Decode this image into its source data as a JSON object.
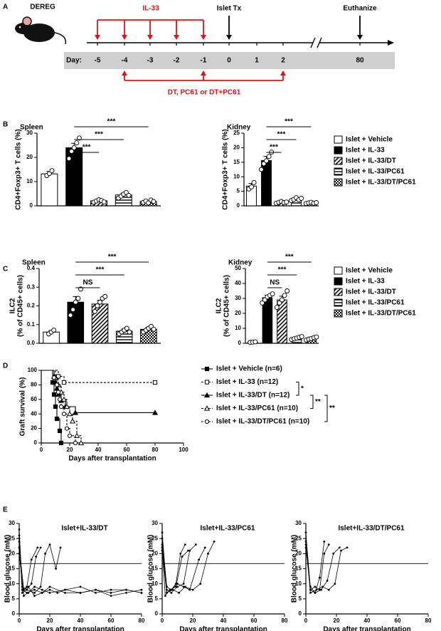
{
  "panels": [
    "A",
    "B",
    "C",
    "D",
    "E"
  ],
  "timeline": {
    "mouse_label": "DEREG",
    "top_treatment": "IL-33",
    "transplant": "Islet Tx",
    "endpoint": "Euthanize",
    "day_prefix": "Day:",
    "days": [
      "-5",
      "-4",
      "-3",
      "-2",
      "-1",
      "0",
      "1",
      "2",
      "80"
    ],
    "bottom_treatment": "DT, PC61 or DT+PC61"
  },
  "chart_data": [
    {
      "type": "bar",
      "title": "Spleen",
      "ylabel": [
        "CD4+Foxp3+ T cells (%)"
      ],
      "categories": [
        null,
        null,
        null,
        null,
        null
      ],
      "patterns": [
        "open",
        "solid",
        "diagonal",
        "horizontal",
        "checker"
      ],
      "values": [
        13.2,
        24,
        2.1,
        4.5,
        1.8
      ],
      "errors": [
        1,
        1.8,
        0.4,
        0.8,
        0.3
      ],
      "points": [
        [
          12.5,
          13.3,
          14.5
        ],
        [
          19.5,
          22.5,
          24,
          26,
          28
        ],
        [
          1.5,
          2,
          2.5,
          2.2,
          1.6
        ],
        [
          3.2,
          4,
          4.8,
          5.5,
          4.3
        ],
        [
          1.4,
          2,
          1.2,
          2.4,
          1.8
        ]
      ],
      "ylim": [
        0,
        30
      ],
      "yticks": [
        0,
        10,
        20,
        30
      ],
      "brackets": [
        {
          "text": "***",
          "from": 1,
          "to": 2
        },
        {
          "text": "***",
          "from": 1,
          "to": 3
        },
        {
          "text": "***",
          "from": 1,
          "to": 4
        }
      ]
    },
    {
      "type": "bar",
      "title": "Kidney",
      "ylabel": [
        "CD4+Foxp3+ T cells (%)"
      ],
      "categories": [
        "Islet + Vehicle",
        "Islet + IL-33",
        "Islet + IL-33/DT",
        "Islet + IL-33/PC61",
        "Islet + IL-33/DT/PC61"
      ],
      "patterns": [
        "open",
        "solid",
        "diagonal",
        "horizontal",
        "checker"
      ],
      "legend": "right",
      "values": [
        6.8,
        15.6,
        1.2,
        2.3,
        1.0
      ],
      "errors": [
        0.9,
        1.4,
        0.2,
        0.4,
        0.2
      ],
      "points": [
        [
          5.8,
          6.5,
          8
        ],
        [
          12.5,
          14.5,
          15.5,
          17,
          18.5
        ],
        [
          0.9,
          1.2,
          1.5,
          1.1,
          1.3
        ],
        [
          1.8,
          2.2,
          2.8,
          2.1,
          2.6
        ],
        [
          0.8,
          1,
          1.2,
          0.9,
          1.1
        ]
      ],
      "ylim": [
        0,
        25
      ],
      "yticks": [
        0,
        5,
        10,
        15,
        20,
        25
      ],
      "brackets": [
        {
          "text": "***",
          "from": 1,
          "to": 2
        },
        {
          "text": "***",
          "from": 1,
          "to": 3
        },
        {
          "text": "***",
          "from": 1,
          "to": 4
        }
      ]
    },
    {
      "type": "bar",
      "title": "Spleen",
      "ylabel": [
        "ILC2",
        "(% of CD45+ cells)"
      ],
      "categories": [
        null,
        null,
        null,
        null,
        null
      ],
      "patterns": [
        "open",
        "solid",
        "diagonal",
        "horizontal",
        "checker"
      ],
      "values": [
        0.06,
        0.22,
        0.21,
        0.065,
        0.075
      ],
      "errors": [
        0.008,
        0.03,
        0.02,
        0.012,
        0.01
      ],
      "points": [
        [
          0.05,
          0.06,
          0.07
        ],
        [
          0.15,
          0.18,
          0.22,
          0.24,
          0.29
        ],
        [
          0.17,
          0.2,
          0.22,
          0.24,
          0.25
        ],
        [
          0.05,
          0.06,
          0.07,
          0.08,
          0.06
        ],
        [
          0.06,
          0.07,
          0.08,
          0.09,
          0.075
        ]
      ],
      "ylim": [
        0,
        0.4
      ],
      "yticks": [
        {
          "value": 0,
          "label": "0.0"
        },
        0.1,
        0.2,
        0.3,
        0.4
      ],
      "brackets": [
        {
          "text": "NS",
          "from": 1,
          "to": 2
        },
        {
          "text": "***",
          "from": 1,
          "to": 3
        },
        {
          "text": "***",
          "from": 1,
          "to": 4
        }
      ]
    },
    {
      "type": "bar",
      "title": "Kidney",
      "ylabel": [
        "ILC2",
        "(% of CD45+ cells)"
      ],
      "categories": [
        "Islet + Vehicle",
        "Islet + IL-33",
        "Islet + IL-33/DT",
        "Islet + IL-33/PC61",
        "Islet + IL-33/DT/PC61"
      ],
      "patterns": [
        "open",
        "solid",
        "diagonal",
        "horizontal",
        "checker"
      ],
      "legend": "right",
      "values": [
        0.8,
        30.5,
        29,
        3.5,
        3.2
      ],
      "errors": [
        0.2,
        1.5,
        2.5,
        0.5,
        0.5
      ],
      "points": [
        [
          0.6,
          0.8,
          1
        ],
        [
          27,
          29,
          31,
          32,
          33
        ],
        [
          24,
          27,
          29,
          32,
          35
        ],
        [
          2.5,
          3,
          3.5,
          4,
          4.5
        ],
        [
          2.2,
          2.8,
          3.2,
          3.8,
          4.2
        ]
      ],
      "ylim": [
        0,
        50
      ],
      "yticks": [
        0,
        10,
        20,
        30,
        40,
        50
      ],
      "brackets": [
        {
          "text": "NS",
          "from": 1,
          "to": 2
        },
        {
          "text": "***",
          "from": 1,
          "to": 3
        },
        {
          "text": "***",
          "from": 1,
          "to": 4
        }
      ]
    },
    {
      "type": "survival",
      "ylabel": [
        "Graft survival (%)"
      ],
      "xlabel": "Days after transplantation",
      "xlim": [
        0,
        100
      ],
      "xticks": [
        0,
        20,
        40,
        60,
        80,
        100
      ],
      "ylim": [
        0,
        100
      ],
      "yticks": [
        0,
        20,
        40,
        60,
        80,
        100
      ],
      "legend": "right",
      "series": [
        {
          "name": "Islet + Vehicle (n=6)",
          "color": "#000000",
          "marker": "square",
          "filled": true,
          "dashed": false,
          "x": [
            0,
            8,
            9,
            10,
            11,
            13,
            14
          ],
          "values": [
            100,
            83.3,
            66.7,
            50,
            33.3,
            16.7,
            0
          ]
        },
        {
          "name": "Islet + IL-33 (n=12)",
          "color": "#000000",
          "marker": "square",
          "filled": false,
          "dashed": true,
          "x": [
            0,
            12,
            16,
            80
          ],
          "values": [
            100,
            91.7,
            83.3,
            83.3
          ]
        },
        {
          "name": "Islet + IL-33/DT (n=12)",
          "color": "#000000",
          "marker": "triangle",
          "filled": true,
          "dashed": false,
          "x": [
            0,
            9,
            10,
            11,
            12,
            14,
            17,
            24,
            80
          ],
          "values": [
            100,
            91.7,
            83.3,
            75,
            66.7,
            58.3,
            50,
            41.7,
            41.7
          ]
        },
        {
          "name": "Islet + IL-33/PC61 (n=10)",
          "color": "#000000",
          "marker": "triangle",
          "filled": false,
          "dashed": true,
          "x": [
            0,
            10,
            12,
            14,
            16,
            18,
            20,
            22,
            25,
            28
          ],
          "values": [
            100,
            90,
            80,
            70,
            60,
            50,
            40,
            30,
            10,
            0
          ]
        },
        {
          "name": "Islet + IL-33/DT/PC61 (n=10)",
          "color": "#000000",
          "marker": "circle",
          "filled": false,
          "dashed": true,
          "x": [
            0,
            9,
            11,
            12,
            13,
            14,
            16,
            18,
            20,
            24
          ],
          "values": [
            100,
            90,
            80,
            70,
            60,
            50,
            40,
            20,
            10,
            0
          ]
        }
      ],
      "legend_brackets": [
        {
          "text": "*",
          "from": 1,
          "to": 2
        },
        {
          "text": "**",
          "from": 2,
          "to": 3
        },
        {
          "text": "**",
          "from": 2,
          "to": 4
        }
      ]
    },
    {
      "type": "line",
      "title": "Islet+IL-33/DT",
      "ylabel": [
        "Blood glucose (mM)"
      ],
      "xlabel": "Days after transplantation",
      "xlim": [
        0,
        80
      ],
      "xticks": [
        0,
        20,
        40,
        60,
        80
      ],
      "ylim": [
        0,
        30
      ],
      "yticks": [
        0,
        5,
        10,
        15,
        20,
        25,
        30
      ],
      "hline": 16.7,
      "series": [
        {
          "color": "#000000",
          "x": [
            0,
            2,
            5,
            10,
            15,
            20,
            25,
            30,
            40,
            50,
            60,
            70,
            80
          ],
          "values": [
            28,
            8,
            7,
            8,
            7,
            8,
            7,
            8,
            7,
            8,
            7,
            8,
            7
          ]
        },
        {
          "color": "#000000",
          "x": [
            0,
            2,
            5,
            8,
            11,
            14
          ],
          "values": [
            25,
            9,
            8,
            10,
            19,
            22
          ]
        },
        {
          "color": "#000000",
          "x": [
            0,
            2,
            5,
            10,
            14,
            17,
            20,
            24,
            27
          ],
          "values": [
            26,
            7,
            8,
            7,
            9,
            20,
            23,
            15,
            22
          ]
        },
        {
          "color": "#000000",
          "x": [
            0,
            3,
            6,
            10,
            15,
            20,
            30,
            40,
            50,
            60,
            70,
            80
          ],
          "values": [
            20,
            6,
            7,
            9,
            8,
            7,
            8,
            9,
            7,
            8,
            8,
            7
          ]
        },
        {
          "color": "#000000",
          "x": [
            0,
            3,
            6,
            10,
            15,
            20,
            30,
            40,
            50,
            60,
            70,
            80
          ],
          "values": [
            22,
            8,
            9,
            6,
            7,
            9,
            7,
            7,
            8,
            6,
            7,
            8
          ]
        },
        {
          "color": "#000000",
          "x": [
            0,
            2,
            5,
            8,
            12
          ],
          "values": [
            24,
            8,
            9,
            18,
            22
          ]
        }
      ]
    },
    {
      "type": "line",
      "title": "Islet+IL-33/PC61",
      "ylabel": [
        "Blood glucose (mM)"
      ],
      "xlabel": "Days after transplantation",
      "xlim": [
        0,
        80
      ],
      "xticks": [
        0,
        20,
        40,
        60,
        80
      ],
      "ylim": [
        0,
        30
      ],
      "yticks": [
        0,
        5,
        10,
        15,
        20,
        25,
        30
      ],
      "hline": 16.7,
      "series": [
        {
          "color": "#000000",
          "x": [
            0,
            3,
            6,
            9,
            12,
            15
          ],
          "values": [
            27,
            7,
            8,
            10,
            20,
            23
          ]
        },
        {
          "color": "#000000",
          "x": [
            0,
            3,
            6,
            10,
            14,
            18,
            22
          ],
          "values": [
            23,
            8,
            7,
            9,
            10,
            21,
            23
          ]
        },
        {
          "color": "#000000",
          "x": [
            0,
            3,
            7,
            11,
            15,
            20,
            25,
            30,
            34
          ],
          "values": [
            21,
            7,
            8,
            7,
            9,
            8,
            10,
            20,
            24
          ]
        },
        {
          "color": "#000000",
          "x": [
            0,
            3,
            6,
            10,
            14,
            18,
            24,
            28
          ],
          "values": [
            25,
            9,
            8,
            10,
            9,
            8,
            18,
            22
          ]
        },
        {
          "color": "#000000",
          "x": [
            0,
            2,
            5,
            9,
            13,
            17
          ],
          "values": [
            22,
            6,
            8,
            9,
            19,
            21
          ]
        }
      ]
    },
    {
      "type": "line",
      "title": "Islet+IL-33/DT/PC61",
      "ylabel": [
        "Blood glucose (mM)"
      ],
      "xlabel": "Days after transplantation",
      "xlim": [
        0,
        80
      ],
      "xticks": [
        0,
        20,
        40,
        60,
        80
      ],
      "ylim": [
        0,
        30
      ],
      "yticks": [
        0,
        5,
        10,
        15,
        20,
        25,
        30
      ],
      "hline": 16.7,
      "series": [
        {
          "color": "#000000",
          "x": [
            0,
            3,
            6,
            9,
            12
          ],
          "values": [
            27,
            8,
            7,
            12,
            24
          ]
        },
        {
          "color": "#000000",
          "x": [
            0,
            3,
            6,
            9,
            12,
            15
          ],
          "values": [
            22,
            8,
            9,
            8,
            20,
            23
          ]
        },
        {
          "color": "#000000",
          "x": [
            0,
            3,
            7,
            11,
            15,
            19,
            23,
            27
          ],
          "values": [
            24,
            7,
            8,
            9,
            8,
            10,
            21,
            22
          ]
        },
        {
          "color": "#000000",
          "x": [
            0,
            3,
            6,
            10,
            14,
            18,
            22
          ],
          "values": [
            23,
            9,
            7,
            8,
            11,
            20,
            22
          ]
        }
      ]
    }
  ]
}
